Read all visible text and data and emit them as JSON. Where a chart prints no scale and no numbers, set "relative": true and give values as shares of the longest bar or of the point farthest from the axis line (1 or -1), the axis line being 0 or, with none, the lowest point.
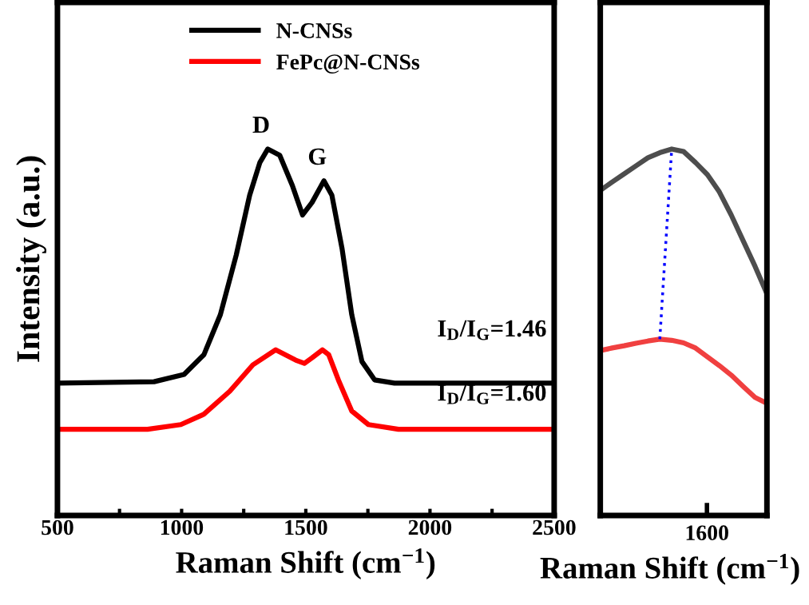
{
  "chart_data": [
    {
      "type": "line",
      "relative": true,
      "xlabel": "Raman Shift (cm$^{−1}$)",
      "ylabel": "Intensity (a.u.)",
      "xlim": [
        500,
        2500
      ],
      "xticks": [
        500,
        {
          "value": 750,
          "label": null
        },
        1000,
        {
          "value": 1250,
          "label": null
        },
        1500,
        {
          "value": 1750,
          "label": null
        },
        2000,
        {
          "value": 2250,
          "label": null
        },
        2500
      ],
      "tick_labels": "x",
      "legend": "top",
      "line_style": "solid",
      "marker": "none",
      "annotations": [
        {
          "text": "D",
          "x": 1347,
          "y": 1
        },
        {
          "text": "G",
          "x": 1573,
          "y": 0.913
        },
        "I$_{D}$/I$_{G}$=1.46",
        "I$_{D}$/I$_{G}$=1.60"
      ],
      "series": [
        {
          "name": "N-CNSs",
          "color": "#000000",
          "x": [
            500,
            889,
            1010,
            1090,
            1156,
            1220,
            1274,
            1315,
            1347,
            1395,
            1446,
            1487,
            1525,
            1573,
            1605,
            1646,
            1685,
            1726,
            1777,
            1857,
            2500
          ],
          "values": [
            0.361,
            0.365,
            0.385,
            0.439,
            0.548,
            0.711,
            0.874,
            0.963,
            1,
            0.983,
            0.9,
            0.82,
            0.854,
            0.913,
            0.874,
            0.728,
            0.548,
            0.42,
            0.37,
            0.361,
            0.361
          ]
        },
        {
          "name": "FePc@N-CNSs",
          "color": "#ff0000",
          "x": [
            500,
            863,
            997,
            1089,
            1194,
            1287,
            1379,
            1459,
            1494,
            1525,
            1567,
            1592,
            1634,
            1685,
            1752,
            1873,
            2500
          ],
          "values": [
            0.235,
            0.235,
            0.248,
            0.276,
            0.339,
            0.411,
            0.452,
            0.424,
            0.415,
            0.43,
            0.452,
            0.439,
            0.365,
            0.285,
            0.248,
            0.235,
            0.235
          ]
        }
      ]
    },
    {
      "type": "line",
      "relative": true,
      "xlabel": "Raman Shift (cm$^{−1}$)",
      "line_style": "solid",
      "marker": "none",
      "categories": [
        null,
        null,
        null,
        null,
        null,
        null,
        null,
        null,
        null,
        null,
        null,
        null,
        null,
        null,
        null
      ],
      "annotations": [
        "1600"
      ],
      "series": [
        {
          "color": "#4d4d4d",
          "values": [
            0.887,
            0.91,
            0.932,
            0.954,
            0.976,
            0.99,
            1,
            0.993,
            0.963,
            0.93,
            0.883,
            0.82,
            0.75,
            0.68,
            0.605
          ]
        },
        {
          "color": "#f04040",
          "values": [
            0.45,
            0.457,
            0.463,
            0.47,
            0.476,
            0.481,
            0.478,
            0.471,
            0.457,
            0.433,
            0.409,
            0.383,
            0.352,
            0.322,
            0.306
          ]
        },
        {
          "color": "#0000ff",
          "line_style": "dotted",
          "values": [
            null,
            null,
            null,
            null,
            null,
            0.481,
            1,
            null,
            null,
            null,
            null,
            null,
            null,
            null,
            null
          ]
        }
      ]
    }
  ]
}
